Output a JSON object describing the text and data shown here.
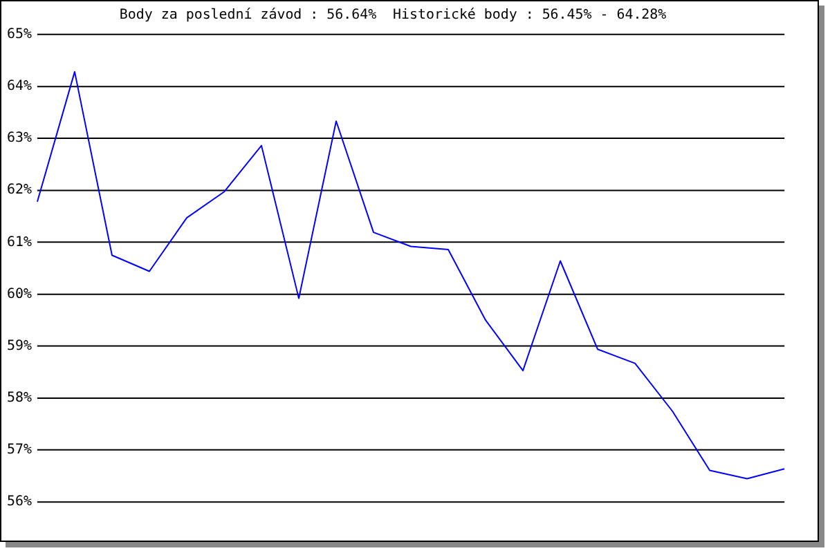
{
  "chart_data": {
    "type": "line",
    "title": "Body za poslední závod : 56.64%  Historické body : 56.45% - 64.28%",
    "categories": [
      null,
      null,
      null,
      null,
      null,
      null,
      null,
      null,
      null,
      null,
      null,
      null,
      null,
      null,
      null,
      null,
      null,
      null,
      null,
      null,
      null
    ],
    "series": [
      {
        "color": "#0000ff",
        "values": [
          61.78,
          64.28,
          60.75,
          60.44,
          61.47,
          61.97,
          62.86,
          59.92,
          63.33,
          61.19,
          60.92,
          60.86,
          59.5,
          58.53,
          60.64,
          58.94,
          58.67,
          57.75,
          56.61,
          56.45,
          56.64
        ]
      }
    ],
    "ylim": [
      56,
      65
    ],
    "yticks": [
      {
        "value": 56,
        "label": "56%"
      },
      {
        "value": 57,
        "label": "57%"
      },
      {
        "value": 58,
        "label": "58%"
      },
      {
        "value": 59,
        "label": "59%"
      },
      {
        "value": 60,
        "label": "60%"
      },
      {
        "value": 61,
        "label": "61%"
      },
      {
        "value": 62,
        "label": "62%"
      },
      {
        "value": 63,
        "label": "63%"
      },
      {
        "value": 64,
        "label": "64%"
      },
      {
        "value": 65,
        "label": "65%"
      }
    ],
    "grid": "y",
    "legend": false,
    "marker": "none",
    "line_style": "solid",
    "tick_labels": "y"
  }
}
